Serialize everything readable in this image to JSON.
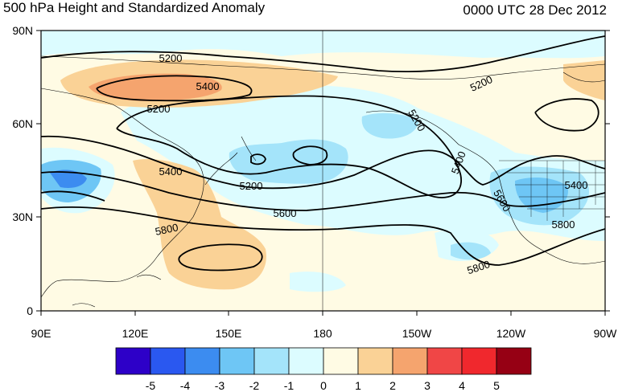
{
  "title": "500 hPa Height and Standardized Anomaly",
  "timestamp": "0000 UTC 28 Dec 2012",
  "lat_labels": [
    "90N",
    "60N",
    "30N",
    "0"
  ],
  "lon_labels": [
    "90E",
    "120E",
    "150E",
    "180",
    "150W",
    "120W",
    "90W"
  ],
  "contour_labels": [
    "5200",
    "5400",
    "5200",
    "5200",
    "5200",
    "5400",
    "5200",
    "5400",
    "5600",
    "5800",
    "5400",
    "5800",
    "5600",
    "5800"
  ],
  "colorbar": {
    "tick_labels": [
      "-5",
      "-4",
      "-3",
      "-2",
      "-1",
      "0",
      "1",
      "2",
      "3",
      "4",
      "5"
    ],
    "colors": [
      "#2d00c8",
      "#2a58f0",
      "#3c8cf0",
      "#6ec6f5",
      "#a4e4fa",
      "#dcfcff",
      "#fffbe4",
      "#fad296",
      "#f5a46e",
      "#f04646",
      "#f0282d",
      "#960014"
    ]
  }
}
